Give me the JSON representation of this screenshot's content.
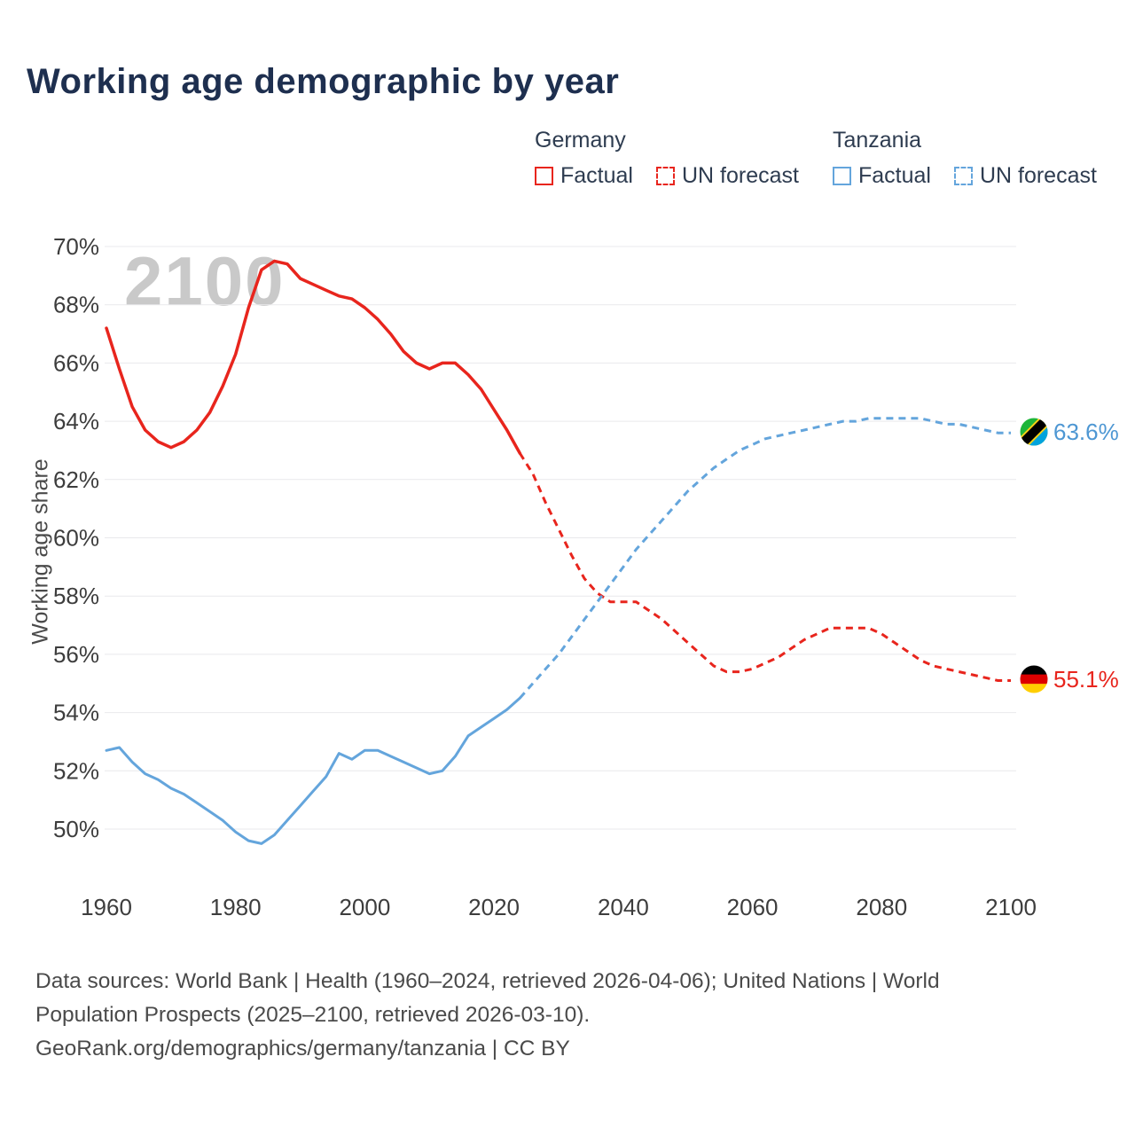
{
  "page": {
    "title": "Working age demographic by year",
    "watermark": "2100"
  },
  "legend": {
    "groups": [
      {
        "country": "Germany",
        "color": "#e8251d",
        "factual_label": "Factual",
        "forecast_label": "UN forecast"
      },
      {
        "country": "Tanzania",
        "color": "#64a5dc",
        "factual_label": "Factual",
        "forecast_label": "UN forecast"
      }
    ]
  },
  "chart_data": {
    "type": "line",
    "title": "Working age demographic by year",
    "xlabel": "",
    "ylabel": "Working age share",
    "xlim": [
      1960,
      2100
    ],
    "ylim": [
      49,
      70
    ],
    "yticks": [
      50,
      52,
      54,
      56,
      58,
      60,
      62,
      64,
      66,
      68,
      70
    ],
    "ytick_suffix": "%",
    "xticks": [
      1960,
      1980,
      2000,
      2020,
      2040,
      2060,
      2080,
      2100
    ],
    "grid": "horizontal",
    "legend_position": "top-right",
    "series": [
      {
        "name": "Germany Factual",
        "color": "#e8251d",
        "style": "solid",
        "width": 3.5,
        "x": [
          1960,
          1962,
          1964,
          1966,
          1968,
          1970,
          1972,
          1974,
          1976,
          1978,
          1980,
          1982,
          1984,
          1986,
          1988,
          1990,
          1992,
          1994,
          1996,
          1998,
          2000,
          2002,
          2004,
          2006,
          2008,
          2010,
          2012,
          2014,
          2016,
          2018,
          2020,
          2022,
          2024
        ],
        "y": [
          67.2,
          65.8,
          64.5,
          63.7,
          63.3,
          63.1,
          63.3,
          63.7,
          64.3,
          65.2,
          66.3,
          67.9,
          69.2,
          69.5,
          69.4,
          68.9,
          68.7,
          68.5,
          68.3,
          68.2,
          67.9,
          67.5,
          67.0,
          66.4,
          66.0,
          65.8,
          66.0,
          66.0,
          65.6,
          65.1,
          64.4,
          63.7,
          62.9
        ]
      },
      {
        "name": "Germany UN forecast",
        "color": "#e8251d",
        "style": "dashed",
        "width": 3,
        "x": [
          2024,
          2026,
          2028,
          2030,
          2032,
          2034,
          2036,
          2038,
          2040,
          2042,
          2044,
          2046,
          2048,
          2050,
          2052,
          2054,
          2056,
          2058,
          2060,
          2062,
          2064,
          2066,
          2068,
          2070,
          2072,
          2074,
          2076,
          2078,
          2080,
          2082,
          2084,
          2086,
          2088,
          2090,
          2092,
          2094,
          2096,
          2098,
          2100
        ],
        "y": [
          62.9,
          62.2,
          61.2,
          60.3,
          59.4,
          58.6,
          58.1,
          57.8,
          57.8,
          57.8,
          57.5,
          57.2,
          56.8,
          56.4,
          56.0,
          55.6,
          55.4,
          55.4,
          55.5,
          55.7,
          55.9,
          56.2,
          56.5,
          56.7,
          56.9,
          56.9,
          56.9,
          56.9,
          56.7,
          56.4,
          56.1,
          55.8,
          55.6,
          55.5,
          55.4,
          55.3,
          55.2,
          55.1,
          55.1
        ]
      },
      {
        "name": "Tanzania Factual",
        "color": "#64a5dc",
        "style": "solid",
        "width": 3,
        "x": [
          1960,
          1962,
          1964,
          1966,
          1968,
          1970,
          1972,
          1974,
          1976,
          1978,
          1980,
          1982,
          1984,
          1986,
          1988,
          1990,
          1992,
          1994,
          1996,
          1998,
          2000,
          2002,
          2004,
          2006,
          2008,
          2010,
          2012,
          2014,
          2016,
          2018,
          2020,
          2022,
          2024
        ],
        "y": [
          52.7,
          52.8,
          52.3,
          51.9,
          51.7,
          51.4,
          51.2,
          50.9,
          50.6,
          50.3,
          49.9,
          49.6,
          49.5,
          49.8,
          50.3,
          50.8,
          51.3,
          51.8,
          52.6,
          52.4,
          52.7,
          52.7,
          52.5,
          52.3,
          52.1,
          51.9,
          52.0,
          52.5,
          53.2,
          53.5,
          53.8,
          54.1,
          54.5
        ]
      },
      {
        "name": "Tanzania UN forecast",
        "color": "#64a5dc",
        "style": "dashed",
        "width": 3,
        "x": [
          2024,
          2026,
          2028,
          2030,
          2032,
          2034,
          2036,
          2038,
          2040,
          2042,
          2044,
          2046,
          2048,
          2050,
          2052,
          2054,
          2056,
          2058,
          2060,
          2062,
          2064,
          2066,
          2068,
          2070,
          2072,
          2074,
          2076,
          2078,
          2080,
          2082,
          2084,
          2086,
          2088,
          2090,
          2092,
          2094,
          2096,
          2098,
          2100
        ],
        "y": [
          54.5,
          55.0,
          55.5,
          56.0,
          56.6,
          57.2,
          57.8,
          58.4,
          59.0,
          59.6,
          60.1,
          60.6,
          61.1,
          61.6,
          62.0,
          62.4,
          62.7,
          63.0,
          63.2,
          63.4,
          63.5,
          63.6,
          63.7,
          63.8,
          63.9,
          64.0,
          64.0,
          64.1,
          64.1,
          64.1,
          64.1,
          64.1,
          64.0,
          63.9,
          63.9,
          63.8,
          63.7,
          63.6,
          63.6
        ]
      }
    ],
    "end_labels": {
      "tanzania": "63.6%",
      "germany": "55.1%"
    }
  },
  "footer": {
    "sources": "Data sources: World Bank | Health (1960–2024, retrieved 2026-04-06); United Nations | World Population Prospects (2025–2100, retrieved 2026-03-10).",
    "attribution": "GeoRank.org/demographics/germany/tanzania | CC BY"
  }
}
